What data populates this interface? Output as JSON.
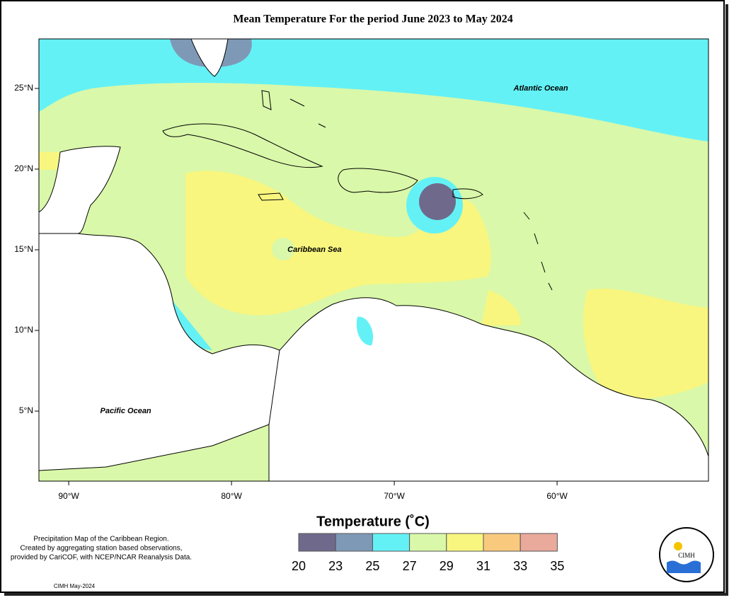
{
  "map": {
    "title": "Mean Temperature For the period June 2023 to May 2024",
    "xlim": [
      -91.83,
      -50.7
    ],
    "ylim": [
      0.66,
      28.07
    ],
    "xticks": [
      {
        "value": -90,
        "label": "90°W"
      },
      {
        "value": -80,
        "label": "80°W"
      },
      {
        "value": -70,
        "label": "70°W"
      },
      {
        "value": -60,
        "label": "60°W"
      }
    ],
    "yticks": [
      {
        "value": 25,
        "label": "25°N"
      },
      {
        "value": 20,
        "label": "20°N"
      },
      {
        "value": 15,
        "label": "15°N"
      },
      {
        "value": 10,
        "label": "10°N"
      },
      {
        "value": 5,
        "label": "5°N"
      }
    ],
    "places": [
      {
        "label": "Atlantic Ocean",
        "lon": -61,
        "lat": 25
      },
      {
        "label": "Caribbean Sea",
        "lon": -74.9,
        "lat": 15
      },
      {
        "label": "Pacific Ocean",
        "lon": -86.5,
        "lat": 5
      }
    ],
    "legend": {
      "title": "Temperature (˚C)",
      "ticks": [
        20,
        23,
        25,
        27,
        29,
        31,
        33,
        35
      ],
      "colors": [
        "#6f6a8c",
        "#7e99b6",
        "#63f1f6",
        "#d9f8a9",
        "#f8f67f",
        "#f9c97e",
        "#e9a99b"
      ]
    },
    "notes": [
      "Precipitation Map of the Caribbean Region.",
      "Created by aggregating station based observations,",
      "provided by CariCOF, with NCEP/NCAR Reanalysis Data."
    ],
    "credit": "CIMH May-2024",
    "logo": "CIMH"
  }
}
